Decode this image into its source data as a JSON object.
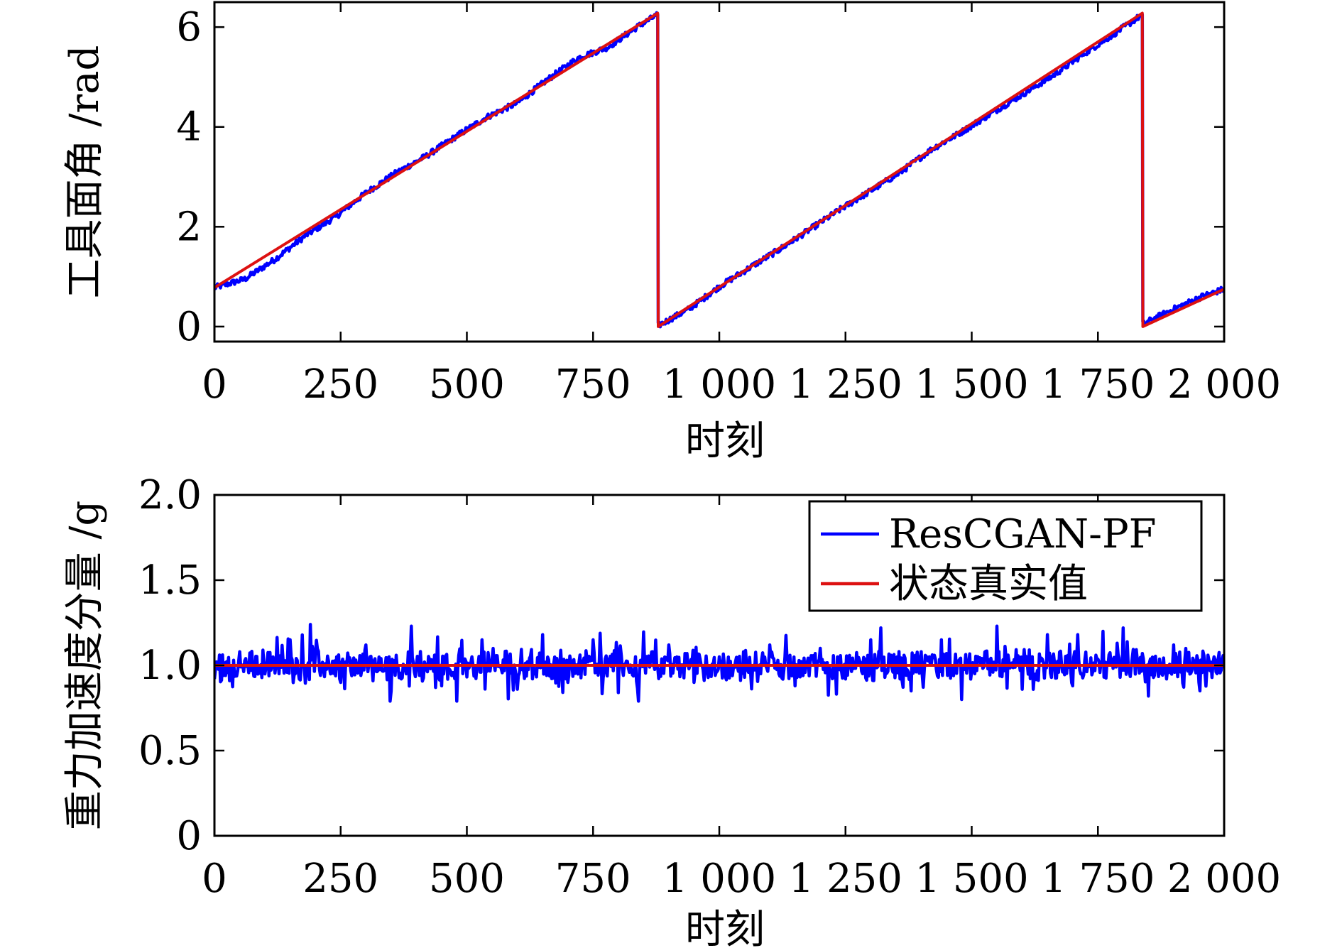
{
  "chart_data": [
    {
      "type": "line",
      "ylabel": "工具面角 /rad",
      "xlabel": "时刻",
      "xlim": [
        0,
        2000
      ],
      "ylim": [
        -0.3,
        6.5
      ],
      "xticks": [
        0,
        250,
        500,
        750,
        1000,
        1250,
        1500,
        1750,
        2000
      ],
      "xtick_labels": [
        "0",
        "250",
        "500",
        "750",
        "1 000",
        "1 250",
        "1 500",
        "1 750",
        "2 000"
      ],
      "yticks": [
        0,
        2,
        4,
        6
      ],
      "ytick_labels": [
        "0",
        "2",
        "4",
        "6"
      ],
      "grid": false,
      "series": [
        {
          "name": "ResCGAN-PF",
          "color": "#0000ff",
          "x": [
            0,
            60,
            120,
            180,
            240,
            300,
            360,
            420,
            480,
            540,
            600,
            660,
            720,
            780,
            840,
            878,
            879,
            940,
            1000,
            1060,
            1120,
            1180,
            1240,
            1300,
            1360,
            1420,
            1480,
            1540,
            1600,
            1660,
            1720,
            1780,
            1838,
            1839,
            1900,
            1960,
            2000
          ],
          "y": [
            0.78,
            0.95,
            1.35,
            1.82,
            2.2,
            2.68,
            3.08,
            3.42,
            3.82,
            4.2,
            4.48,
            4.95,
            5.38,
            5.6,
            6.02,
            6.25,
            0.02,
            0.35,
            0.8,
            1.18,
            1.55,
            1.95,
            2.35,
            2.72,
            3.1,
            3.55,
            3.9,
            4.28,
            4.65,
            5.02,
            5.45,
            5.85,
            6.25,
            0.05,
            0.35,
            0.62,
            0.75
          ]
        },
        {
          "name": "状态真实值",
          "color": "#dd1111",
          "x": [
            0,
            878,
            879,
            1838,
            1839,
            2000
          ],
          "y": [
            0.78,
            6.28,
            0.0,
            6.28,
            0.0,
            0.75
          ]
        }
      ]
    },
    {
      "type": "line",
      "ylabel": "重力加速度分量 /g",
      "xlabel": "时刻",
      "xlim": [
        0,
        2000
      ],
      "ylim": [
        0,
        2.0
      ],
      "xticks": [
        0,
        250,
        500,
        750,
        1000,
        1250,
        1500,
        1750,
        2000
      ],
      "xtick_labels": [
        "0",
        "250",
        "500",
        "750",
        "1 000",
        "1 250",
        "1 500",
        "1 750",
        "2 000"
      ],
      "yticks": [
        0,
        0.5,
        1.0,
        1.5,
        2.0
      ],
      "ytick_labels": [
        "0",
        "0.5",
        "1.0",
        "1.5",
        "2.0"
      ],
      "grid": false,
      "legend_position": "top-right",
      "series": [
        {
          "name": "ResCGAN-PF",
          "color": "#0000ff",
          "x": [
            0,
            50,
            100,
            150,
            190,
            250,
            300,
            350,
            390,
            450,
            480,
            530,
            600,
            650,
            700,
            750,
            800,
            840,
            900,
            950,
            1000,
            1050,
            1100,
            1150,
            1200,
            1250,
            1300,
            1320,
            1380,
            1440,
            1480,
            1550,
            1600,
            1650,
            1700,
            1760,
            1800,
            1850,
            1900,
            1950,
            2000
          ],
          "y": [
            0.92,
            1.08,
            0.95,
            1.15,
            1.24,
            0.9,
            1.12,
            0.85,
            1.23,
            0.88,
            0.79,
            1.15,
            0.86,
            1.18,
            0.9,
            1.15,
            0.84,
            0.79,
            1.12,
            0.9,
            1.05,
            0.93,
            1.12,
            0.88,
            1.1,
            0.92,
            1.15,
            1.22,
            0.85,
            1.15,
            0.8,
            1.23,
            0.86,
            1.18,
            0.88,
            1.2,
            1.22,
            0.82,
            1.12,
            0.9,
            1.05
          ]
        },
        {
          "name": "状态真实值",
          "color": "#dd1111",
          "x": [
            0,
            2000
          ],
          "y": [
            1.0,
            1.0
          ]
        }
      ]
    }
  ]
}
